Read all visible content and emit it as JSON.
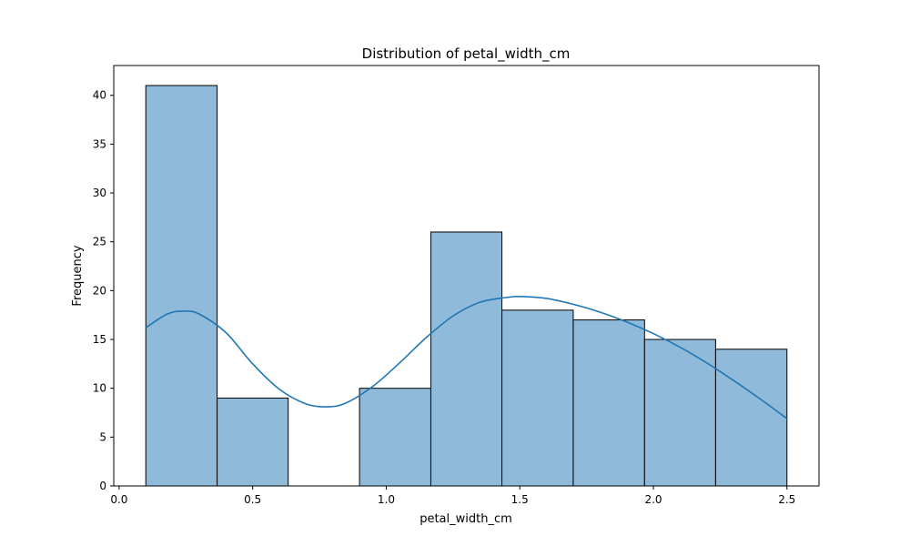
{
  "chart_data": {
    "type": "bar",
    "title": "Distribution of petal_width_cm",
    "xlabel": "petal_width_cm",
    "ylabel": "Frequency",
    "xlim": [
      -0.02,
      2.62
    ],
    "ylim": [
      0,
      43.05
    ],
    "x_ticks": [
      0.0,
      0.5,
      1.0,
      1.5,
      2.0,
      2.5
    ],
    "x_tick_labels": [
      "0.0",
      "0.5",
      "1.0",
      "1.5",
      "2.0",
      "2.5"
    ],
    "y_ticks": [
      0,
      5,
      10,
      15,
      20,
      25,
      30,
      35,
      40
    ],
    "y_tick_labels": [
      "0",
      "5",
      "10",
      "15",
      "20",
      "25",
      "30",
      "35",
      "40"
    ],
    "bins": [
      {
        "x0": 0.1,
        "x1": 0.367,
        "count": 41
      },
      {
        "x0": 0.367,
        "x1": 0.633,
        "count": 9
      },
      {
        "x0": 0.633,
        "x1": 0.9,
        "count": 0
      },
      {
        "x0": 0.9,
        "x1": 1.167,
        "count": 10
      },
      {
        "x0": 1.167,
        "x1": 1.433,
        "count": 26
      },
      {
        "x0": 1.433,
        "x1": 1.7,
        "count": 18
      },
      {
        "x0": 1.7,
        "x1": 1.967,
        "count": 17
      },
      {
        "x0": 1.967,
        "x1": 2.233,
        "count": 15
      },
      {
        "x0": 2.233,
        "x1": 2.5,
        "count": 14
      }
    ],
    "kde_curve": {
      "x": [
        0.1,
        0.18,
        0.24,
        0.3,
        0.4,
        0.5,
        0.6,
        0.7,
        0.78,
        0.85,
        0.95,
        1.05,
        1.15,
        1.25,
        1.35,
        1.45,
        1.5,
        1.6,
        1.7,
        1.8,
        1.9,
        2.0,
        2.1,
        2.2,
        2.3,
        2.4,
        2.5
      ],
      "y": [
        16.2,
        17.6,
        17.9,
        17.6,
        15.7,
        12.5,
        9.9,
        8.4,
        8.1,
        8.5,
        10.2,
        12.6,
        15.2,
        17.4,
        18.8,
        19.3,
        19.4,
        19.2,
        18.6,
        17.8,
        16.8,
        15.6,
        14.2,
        12.6,
        10.8,
        8.9,
        6.9
      ]
    },
    "grid": false,
    "legend": "none",
    "colors": {
      "bar_fill": "#8fbad9",
      "bar_edge": "#000000",
      "kde_line": "#1f77b4",
      "axes": "#000000"
    }
  }
}
